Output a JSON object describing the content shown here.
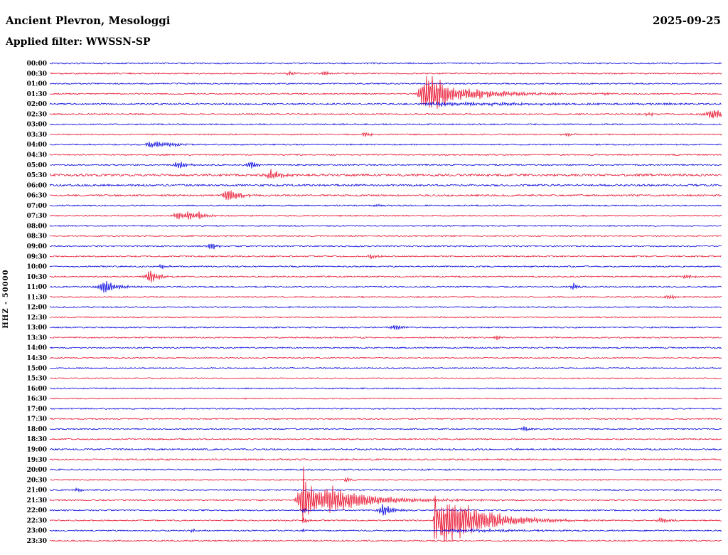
{
  "header": {
    "title": "Ancient Plevron, Mesologgi",
    "date": "2025-09-25",
    "filter_label": "Applied filter: WWSSN-SP"
  },
  "y_axis_label": "HHZ - 50000",
  "chart_data": {
    "type": "line",
    "subtype": "helicorder-seismogram",
    "title": "Ancient Plevron, Mesologgi",
    "date": "2025-09-25",
    "filter": "WWSSN-SP",
    "channel": "HHZ",
    "scale": "50000",
    "minutes_per_row": 30,
    "colors": {
      "blue": "#0000dd",
      "red": "#e8112d"
    },
    "row_labels": [
      "00:00",
      "00:30",
      "01:00",
      "01:30",
      "02:00",
      "02:30",
      "03:00",
      "03:30",
      "04:00",
      "04:30",
      "05:00",
      "05:30",
      "06:00",
      "06:30",
      "07:00",
      "07:30",
      "08:00",
      "08:30",
      "09:00",
      "09:30",
      "10:00",
      "10:30",
      "11:00",
      "11:30",
      "12:00",
      "12:30",
      "13:00",
      "13:30",
      "14:00",
      "14:30",
      "15:00",
      "15:30",
      "16:00",
      "16:30",
      "17:00",
      "17:30",
      "18:00",
      "18:30",
      "19:00",
      "19:30",
      "20:00",
      "20:30",
      "21:00",
      "21:30",
      "22:00",
      "22:30",
      "23:00",
      "23:30"
    ],
    "row_noise": {
      "02:00": 1.2,
      "05:30": 1.7,
      "06:00": 1.5,
      "06:30": 1.3,
      "19:00": 1.2,
      "19:30": 1.2,
      "20:00": 1.2,
      "23:30": 1.1,
      "14:30": 0.8,
      "15:00": 0.8,
      "15:30": 0.8,
      "16:30": 0.85
    },
    "events": [
      {
        "row": "00:30",
        "frac": 0.358,
        "amp": 3,
        "rise": 4,
        "decay": 8
      },
      {
        "row": "00:30",
        "frac": 0.411,
        "amp": 4,
        "rise": 4,
        "decay": 10
      },
      {
        "row": "01:30",
        "frac": 0.558,
        "amp": 34,
        "rise": 5,
        "decay": 60
      },
      {
        "row": "01:30",
        "frac": 0.6,
        "amp": 7,
        "rise": 8,
        "decay": 40
      },
      {
        "row": "01:30",
        "frac": 0.747,
        "amp": 5,
        "rise": 4,
        "decay": 8
      },
      {
        "row": "01:30",
        "frac": 0.828,
        "amp": 3,
        "rise": 4,
        "decay": 8
      },
      {
        "row": "02:00",
        "frac": 0.57,
        "amp": 3,
        "rise": 10,
        "decay": 200
      },
      {
        "row": "02:00",
        "frac": 0.73,
        "amp": 2.5,
        "rise": 4,
        "decay": 8
      },
      {
        "row": "02:30",
        "frac": 0.992,
        "amp": 9,
        "rise": 12,
        "decay": 10
      },
      {
        "row": "02:30",
        "frac": 0.892,
        "amp": 3,
        "rise": 4,
        "decay": 8
      },
      {
        "row": "03:30",
        "frac": 0.471,
        "amp": 4,
        "rise": 4,
        "decay": 8
      },
      {
        "row": "03:30",
        "frac": 0.768,
        "amp": 3,
        "rise": 4,
        "decay": 8
      },
      {
        "row": "04:00",
        "frac": 0.154,
        "amp": 7,
        "rise": 7,
        "decay": 16
      },
      {
        "row": "04:00",
        "frac": 0.183,
        "amp": 3,
        "rise": 4,
        "decay": 8
      },
      {
        "row": "05:00",
        "frac": 0.193,
        "amp": 7,
        "rise": 5,
        "decay": 10
      },
      {
        "row": "05:00",
        "frac": 0.299,
        "amp": 6,
        "rise": 5,
        "decay": 10
      },
      {
        "row": "05:30",
        "frac": 0.332,
        "amp": 9,
        "rise": 6,
        "decay": 12
      },
      {
        "row": "06:30",
        "frac": 0.267,
        "amp": 11,
        "rise": 6,
        "decay": 14
      },
      {
        "row": "07:00",
        "frac": 0.487,
        "amp": 2.5,
        "rise": 4,
        "decay": 8
      },
      {
        "row": "07:30",
        "frac": 0.191,
        "amp": 8,
        "rise": 4,
        "decay": 8
      },
      {
        "row": "07:30",
        "frac": 0.208,
        "amp": 7,
        "rise": 4,
        "decay": 10
      },
      {
        "row": "07:30",
        "frac": 0.222,
        "amp": 5,
        "rise": 4,
        "decay": 12
      },
      {
        "row": "09:00",
        "frac": 0.24,
        "amp": 8,
        "rise": 3,
        "decay": 6
      },
      {
        "row": "09:30",
        "frac": 0.48,
        "amp": 4,
        "rise": 4,
        "decay": 8
      },
      {
        "row": "10:00",
        "frac": 0.167,
        "amp": 4,
        "rise": 4,
        "decay": 8
      },
      {
        "row": "10:30",
        "frac": 0.15,
        "amp": 11,
        "rise": 5,
        "decay": 12
      },
      {
        "row": "10:30",
        "frac": 0.948,
        "amp": 4,
        "rise": 4,
        "decay": 8
      },
      {
        "row": "11:00",
        "frac": 0.082,
        "amp": 11,
        "rise": 8,
        "decay": 18
      },
      {
        "row": "11:00",
        "frac": 0.78,
        "amp": 6,
        "rise": 3,
        "decay": 5
      },
      {
        "row": "11:30",
        "frac": 0.921,
        "amp": 4,
        "rise": 4,
        "decay": 8
      },
      {
        "row": "13:00",
        "frac": 0.515,
        "amp": 5,
        "rise": 5,
        "decay": 10
      },
      {
        "row": "13:30",
        "frac": 0.667,
        "amp": 4,
        "rise": 3,
        "decay": 6
      },
      {
        "row": "18:00",
        "frac": 0.706,
        "amp": 4,
        "rise": 3,
        "decay": 6
      },
      {
        "row": "20:30",
        "frac": 0.443,
        "amp": 5,
        "rise": 3,
        "decay": 6
      },
      {
        "row": "21:00",
        "frac": 0.042,
        "amp": 4,
        "rise": 3,
        "decay": 6
      },
      {
        "row": "21:30",
        "frac": 0.378,
        "amp": 28,
        "rise": 6,
        "decay": 45
      },
      {
        "row": "21:30",
        "frac": 0.378,
        "amp": 50,
        "rise": 1.5,
        "decay": 2
      },
      {
        "row": "21:30",
        "frac": 0.424,
        "amp": 11,
        "rise": 8,
        "decay": 30
      },
      {
        "row": "21:30",
        "frac": 0.45,
        "amp": 4,
        "rise": 10,
        "decay": 120
      },
      {
        "row": "22:00",
        "frac": 0.498,
        "amp": 10,
        "rise": 6,
        "decay": 15
      },
      {
        "row": "22:00",
        "frac": 0.378,
        "amp": 5,
        "rise": 2,
        "decay": 4
      },
      {
        "row": "22:30",
        "frac": 0.586,
        "amp": 40,
        "rise": 5,
        "decay": 55
      },
      {
        "row": "22:30",
        "frac": 0.574,
        "amp": 88,
        "rise": 1.2,
        "decay": 1.8
      },
      {
        "row": "22:30",
        "frac": 0.62,
        "amp": 16,
        "rise": 10,
        "decay": 35
      },
      {
        "row": "22:30",
        "frac": 0.378,
        "amp": 7,
        "rise": 2,
        "decay": 4
      },
      {
        "row": "22:30",
        "frac": 0.911,
        "amp": 5,
        "rise": 4,
        "decay": 10
      },
      {
        "row": "23:00",
        "frac": 0.212,
        "amp": 3,
        "rise": 3,
        "decay": 6
      },
      {
        "row": "23:00",
        "frac": 0.378,
        "amp": 3,
        "rise": 2,
        "decay": 4
      },
      {
        "row": "23:00",
        "frac": 0.6,
        "amp": 2.5,
        "rise": 10,
        "decay": 120
      }
    ]
  }
}
